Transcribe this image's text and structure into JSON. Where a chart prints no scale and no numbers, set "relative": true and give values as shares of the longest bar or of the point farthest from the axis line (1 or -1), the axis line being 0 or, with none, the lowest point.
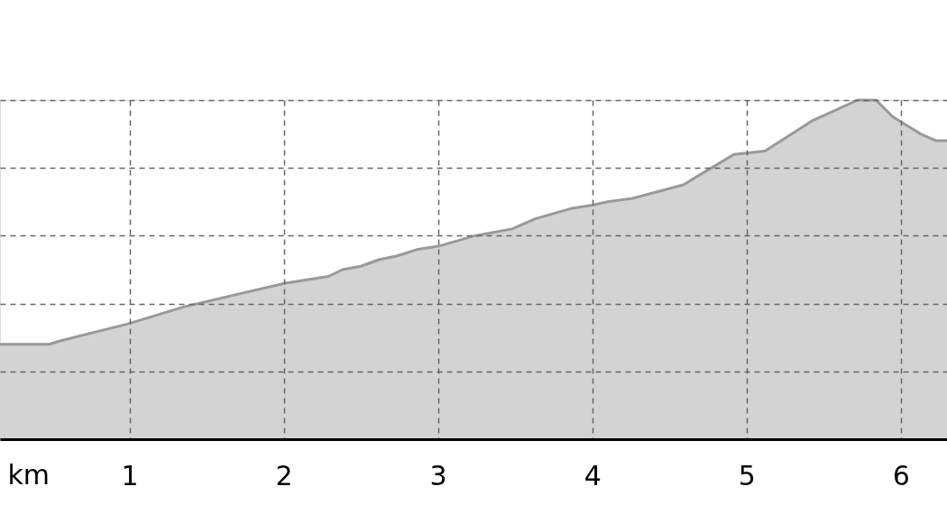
{
  "chart_data": {
    "type": "area",
    "xlabel": "km",
    "relative": true,
    "xlim": [
      0.16,
      6.3
    ],
    "xticks": [
      1,
      2,
      3,
      4,
      5,
      6
    ],
    "grid": true,
    "x": [
      0.16,
      0.48,
      0.55,
      0.99,
      1.35,
      2.01,
      2.15,
      2.29,
      2.38,
      2.5,
      2.62,
      2.73,
      2.87,
      3.01,
      3.24,
      3.48,
      3.63,
      3.86,
      4.0,
      4.1,
      4.26,
      4.59,
      4.92,
      5.12,
      5.43,
      5.72,
      5.84,
      5.95,
      6.13,
      6.23,
      6.3
    ],
    "series": [
      {
        "color": "#d3d3d3",
        "values": [
          0.28,
          0.28,
          0.29,
          0.34,
          0.39,
          0.46,
          0.47,
          0.48,
          0.5,
          0.51,
          0.53,
          0.54,
          0.56,
          0.57,
          0.6,
          0.62,
          0.65,
          0.68,
          0.69,
          0.7,
          0.71,
          0.75,
          0.84,
          0.85,
          0.94,
          1.0,
          1.0,
          0.95,
          0.9,
          0.88,
          0.88
        ]
      }
    ]
  }
}
